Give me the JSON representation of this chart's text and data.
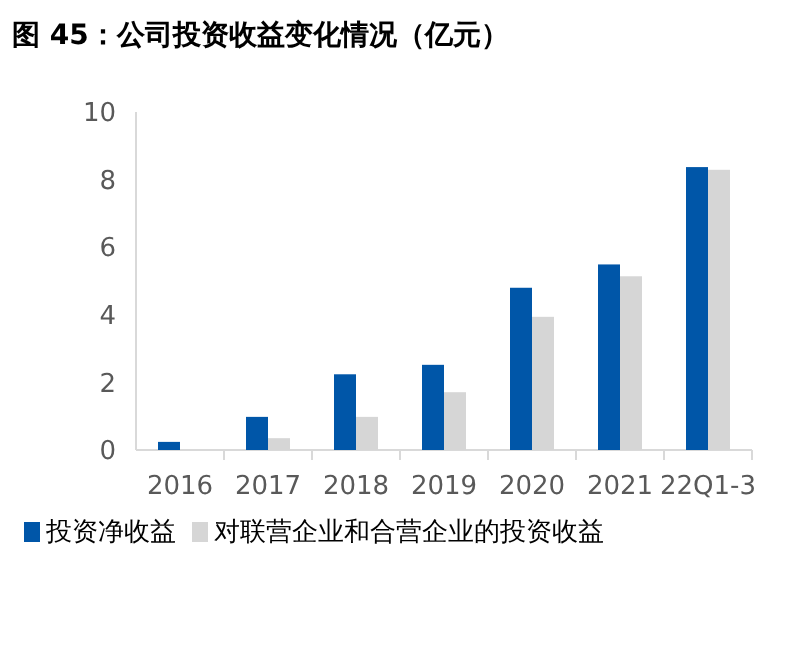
{
  "chart_data": {
    "type": "bar",
    "title": "图 45：公司投资收益变化情况（亿元）",
    "categories": [
      "2016",
      "2017",
      "2018",
      "2019",
      "2020",
      "2021",
      "22Q1-3"
    ],
    "series": [
      {
        "name": "投资净收益",
        "color": "#0056a8",
        "values": [
          0.24,
          0.98,
          2.24,
          2.52,
          4.8,
          5.49,
          8.37
        ]
      },
      {
        "name": "对联营企业和合营企业的投资收益",
        "color": "#d6d6d6",
        "values": [
          0,
          0.35,
          0.98,
          1.71,
          3.94,
          5.14,
          8.29
        ]
      }
    ],
    "ylim": [
      0,
      10
    ],
    "yticks": [
      0,
      2,
      4,
      6,
      8,
      10
    ],
    "grid": false,
    "legend": "bottom"
  }
}
